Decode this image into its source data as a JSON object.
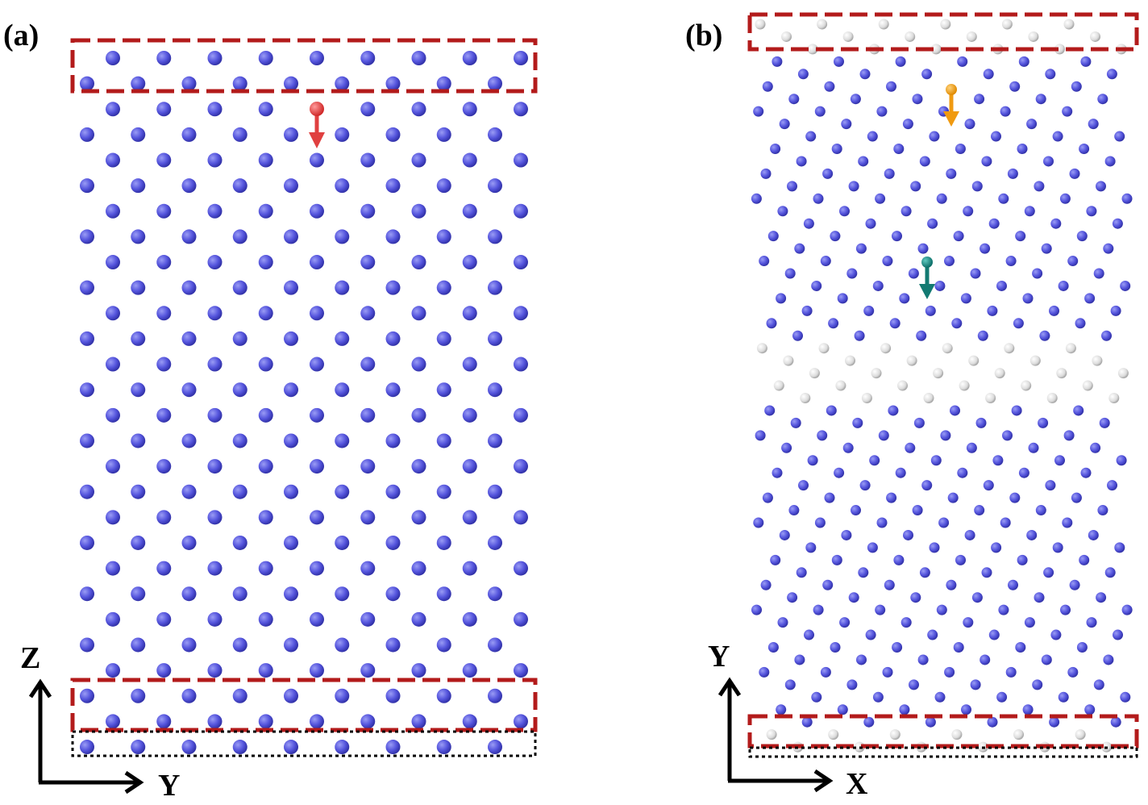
{
  "panel_a": {
    "label": "(a)",
    "axis_vertical": "Z",
    "axis_horizontal": "Y"
  },
  "panel_b": {
    "label": "(b)",
    "axis_vertical": "Y",
    "axis_horizontal": "X"
  }
}
